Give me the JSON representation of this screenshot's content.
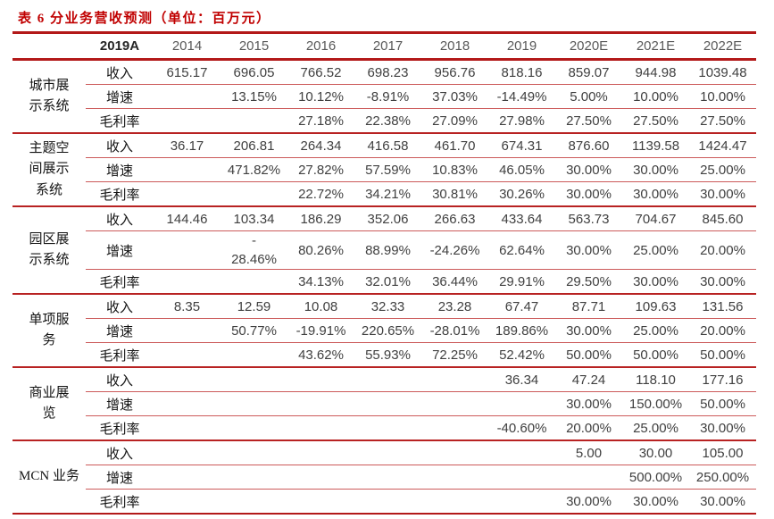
{
  "title": "表 6 分业务营收预测（单位：百万元）",
  "colors": {
    "accent_red": "#c00000",
    "line_red": "#b31919",
    "line_light_red": "#cc5a5a",
    "header_gray": "#595959",
    "value_gray": "#404040"
  },
  "table": {
    "corner_header": "2019A",
    "year_headers": [
      "2014",
      "2015",
      "2016",
      "2017",
      "2018",
      "2019",
      "2020E",
      "2021E",
      "2022E"
    ],
    "groups": [
      {
        "name": "城市展示系统",
        "rows": [
          {
            "label": "收入",
            "values": [
              "615.17",
              "696.05",
              "766.52",
              "698.23",
              "956.76",
              "818.16",
              "859.07",
              "944.98",
              "1039.48"
            ]
          },
          {
            "label": "增速",
            "values": [
              "",
              "13.15%",
              "10.12%",
              "-8.91%",
              "37.03%",
              "-14.49%",
              "5.00%",
              "10.00%",
              "10.00%"
            ]
          },
          {
            "label": "毛利率",
            "values": [
              "",
              "",
              "27.18%",
              "22.38%",
              "27.09%",
              "27.98%",
              "27.50%",
              "27.50%",
              "27.50%"
            ]
          }
        ]
      },
      {
        "name": "主题空间展示系统",
        "rows": [
          {
            "label": "收入",
            "values": [
              "36.17",
              "206.81",
              "264.34",
              "416.58",
              "461.70",
              "674.31",
              "876.60",
              "1139.58",
              "1424.47"
            ]
          },
          {
            "label": "增速",
            "values": [
              "",
              "471.82%",
              "27.82%",
              "57.59%",
              "10.83%",
              "46.05%",
              "30.00%",
              "30.00%",
              "25.00%"
            ]
          },
          {
            "label": "毛利率",
            "values": [
              "",
              "",
              "22.72%",
              "34.21%",
              "30.81%",
              "30.26%",
              "30.00%",
              "30.00%",
              "30.00%"
            ]
          }
        ]
      },
      {
        "name": "园区展示系统",
        "rows": [
          {
            "label": "收入",
            "values": [
              "144.46",
              "103.34",
              "186.29",
              "352.06",
              "266.63",
              "433.64",
              "563.73",
              "704.67",
              "845.60"
            ]
          },
          {
            "label": "增速",
            "values": [
              "",
              "-\n28.46%",
              "80.26%",
              "88.99%",
              "-24.26%",
              "62.64%",
              "30.00%",
              "25.00%",
              "20.00%"
            ]
          },
          {
            "label": "毛利率",
            "values": [
              "",
              "",
              "34.13%",
              "32.01%",
              "36.44%",
              "29.91%",
              "29.50%",
              "30.00%",
              "30.00%"
            ]
          }
        ]
      },
      {
        "name": "单项服务",
        "rows": [
          {
            "label": "收入",
            "values": [
              "8.35",
              "12.59",
              "10.08",
              "32.33",
              "23.28",
              "67.47",
              "87.71",
              "109.63",
              "131.56"
            ]
          },
          {
            "label": "增速",
            "values": [
              "",
              "50.77%",
              "-19.91%",
              "220.65%",
              "-28.01%",
              "189.86%",
              "30.00%",
              "25.00%",
              "20.00%"
            ]
          },
          {
            "label": "毛利率",
            "values": [
              "",
              "",
              "43.62%",
              "55.93%",
              "72.25%",
              "52.42%",
              "50.00%",
              "50.00%",
              "50.00%"
            ]
          }
        ]
      },
      {
        "name": "商业展览",
        "rows": [
          {
            "label": "收入",
            "values": [
              "",
              "",
              "",
              "",
              "",
              "36.34",
              "47.24",
              "118.10",
              "177.16"
            ]
          },
          {
            "label": "增速",
            "values": [
              "",
              "",
              "",
              "",
              "",
              "",
              "30.00%",
              "150.00%",
              "50.00%"
            ]
          },
          {
            "label": "毛利率",
            "values": [
              "",
              "",
              "",
              "",
              "",
              "-40.60%",
              "20.00%",
              "25.00%",
              "30.00%"
            ]
          }
        ]
      },
      {
        "name": "MCN 业务",
        "rows": [
          {
            "label": "收入",
            "values": [
              "",
              "",
              "",
              "",
              "",
              "",
              "5.00",
              "30.00",
              "105.00"
            ]
          },
          {
            "label": "增速",
            "values": [
              "",
              "",
              "",
              "",
              "",
              "",
              "",
              "500.00%",
              "250.00%"
            ]
          },
          {
            "label": "毛利率",
            "values": [
              "",
              "",
              "",
              "",
              "",
              "",
              "30.00%",
              "30.00%",
              "30.00%"
            ]
          }
        ]
      }
    ]
  }
}
